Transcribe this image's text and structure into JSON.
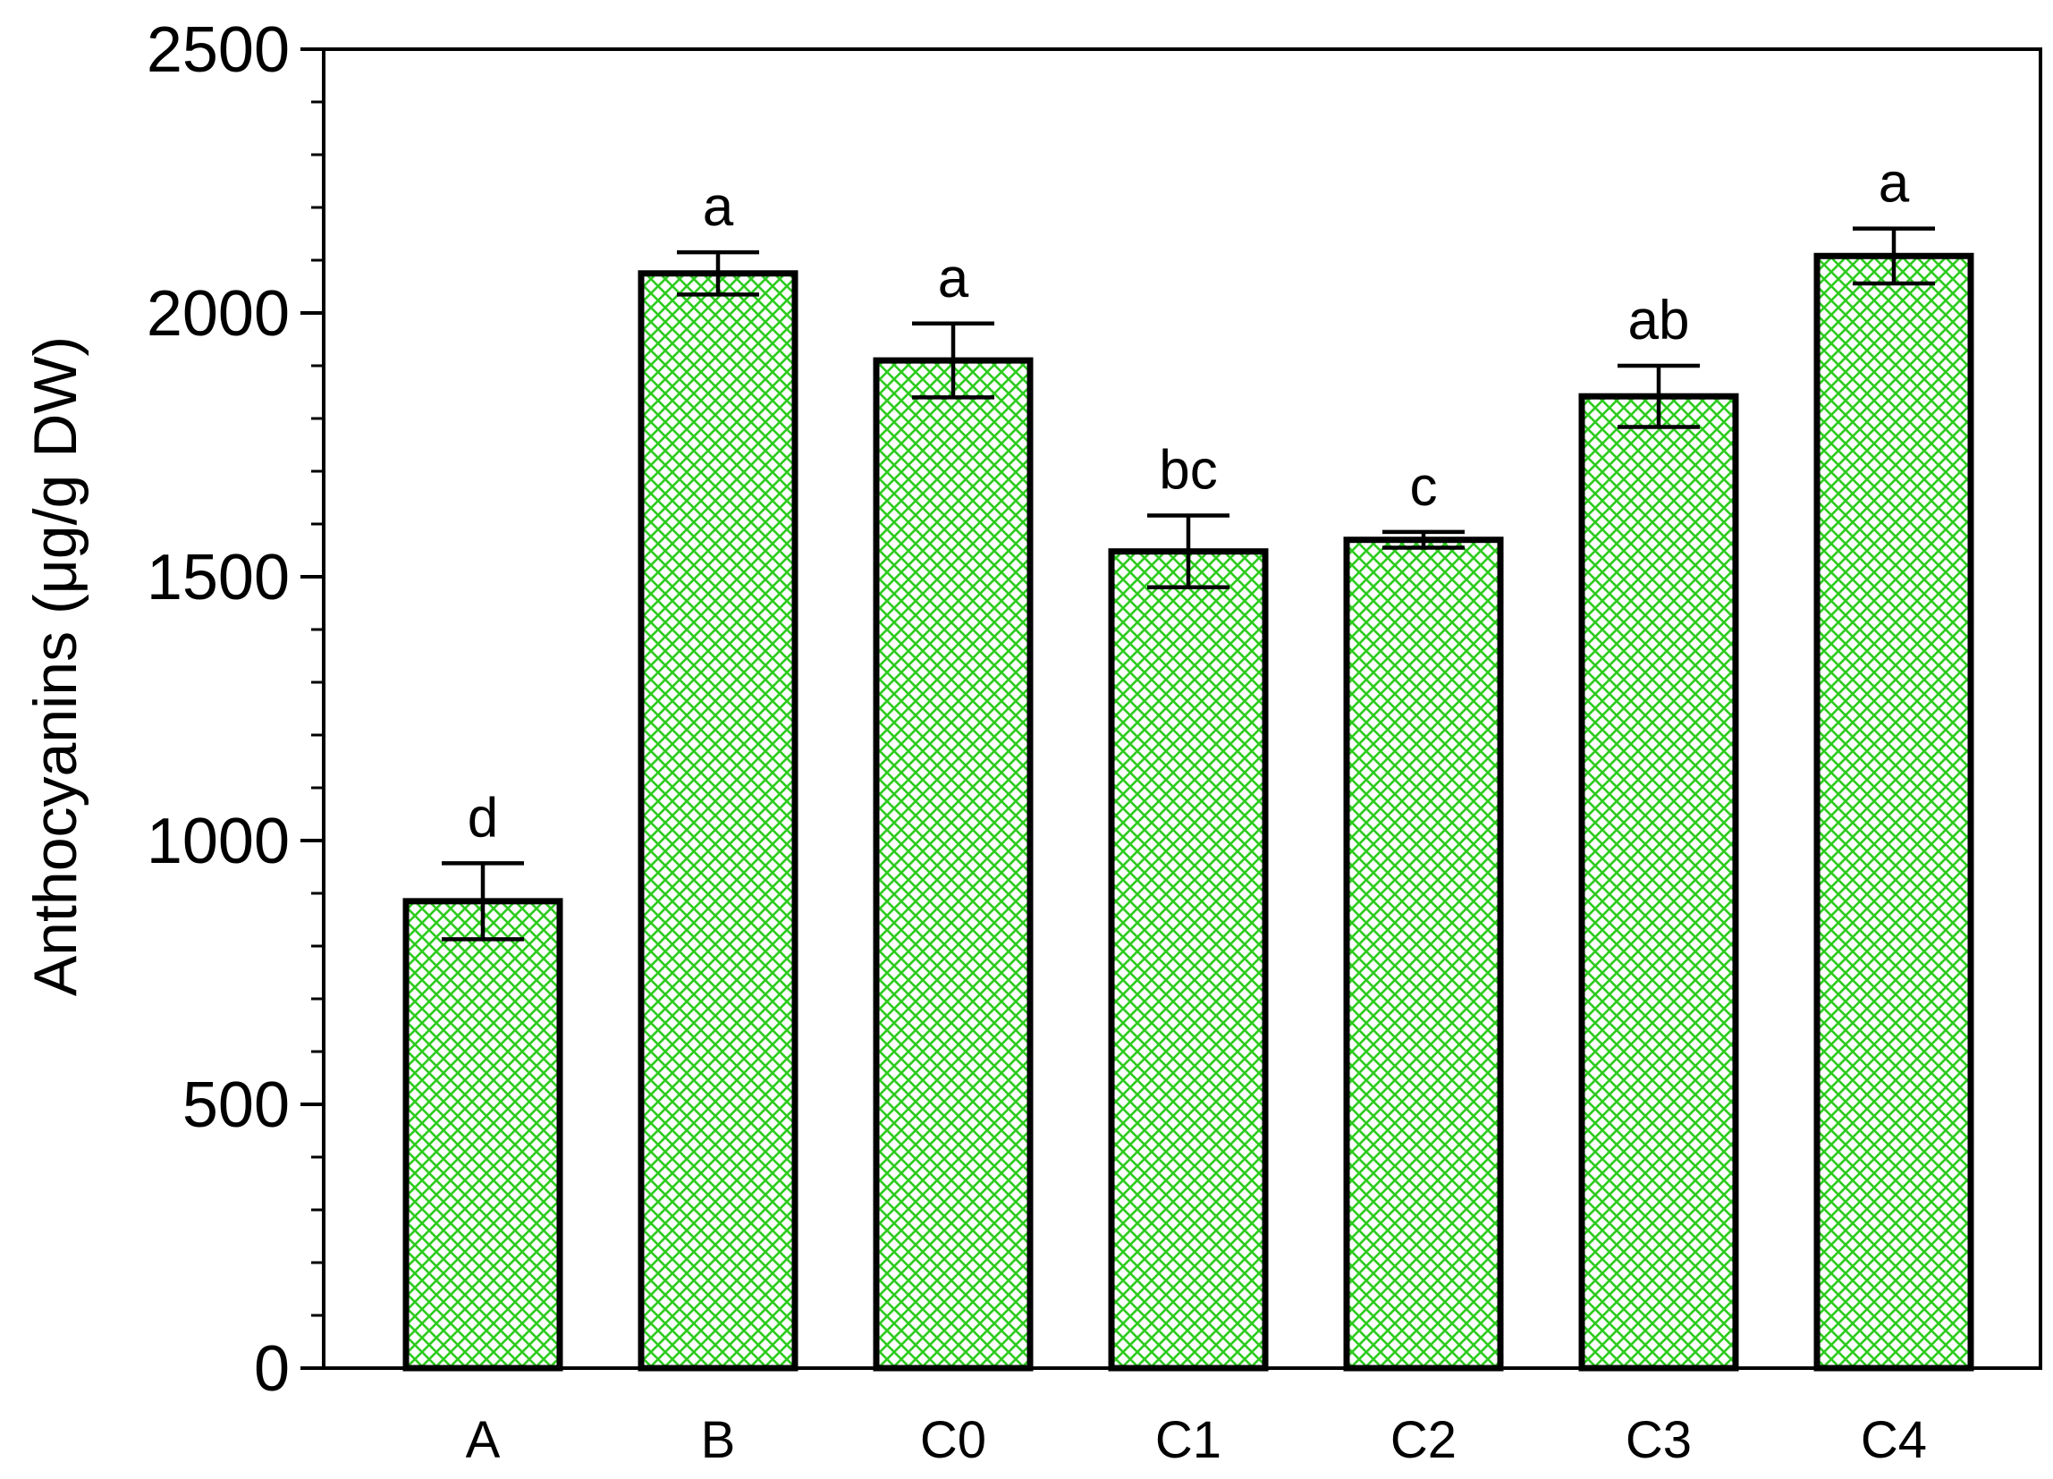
{
  "chart_data": {
    "type": "bar",
    "title": "",
    "xlabel": "",
    "ylabel": "Anthocyanins (μg/g DW)",
    "ylim": [
      0,
      2500
    ],
    "yticks": [
      "0",
      "500",
      "1000",
      "1500",
      "2000",
      "2500"
    ],
    "categories": [
      "A",
      "B",
      "C0",
      "C1",
      "C2",
      "C3",
      "C4"
    ],
    "values": [
      885,
      2075,
      1910,
      1548,
      1570,
      1842,
      2108
    ],
    "errors": [
      72,
      40,
      70,
      68,
      15,
      58,
      52
    ],
    "significance": [
      "d",
      "a",
      "a",
      "bc",
      "c",
      "ab",
      "a"
    ],
    "grid": false,
    "colors": {
      "bar_fill": "#2ecc1f",
      "bar_edge": "#000000"
    }
  }
}
